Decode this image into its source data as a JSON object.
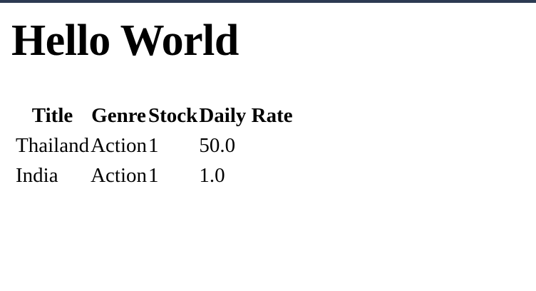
{
  "page": {
    "heading": "Hello World"
  },
  "table": {
    "headers": [
      "Title",
      "Genre",
      "Stock",
      "Daily Rate"
    ],
    "rows": [
      [
        "Thailand",
        "Action",
        "1",
        "50.0"
      ],
      [
        "India",
        "Action",
        "1",
        "1.0"
      ]
    ]
  },
  "colors": {
    "top_bar": "#2c3a52",
    "background": "#ffffff",
    "text": "#000000"
  }
}
